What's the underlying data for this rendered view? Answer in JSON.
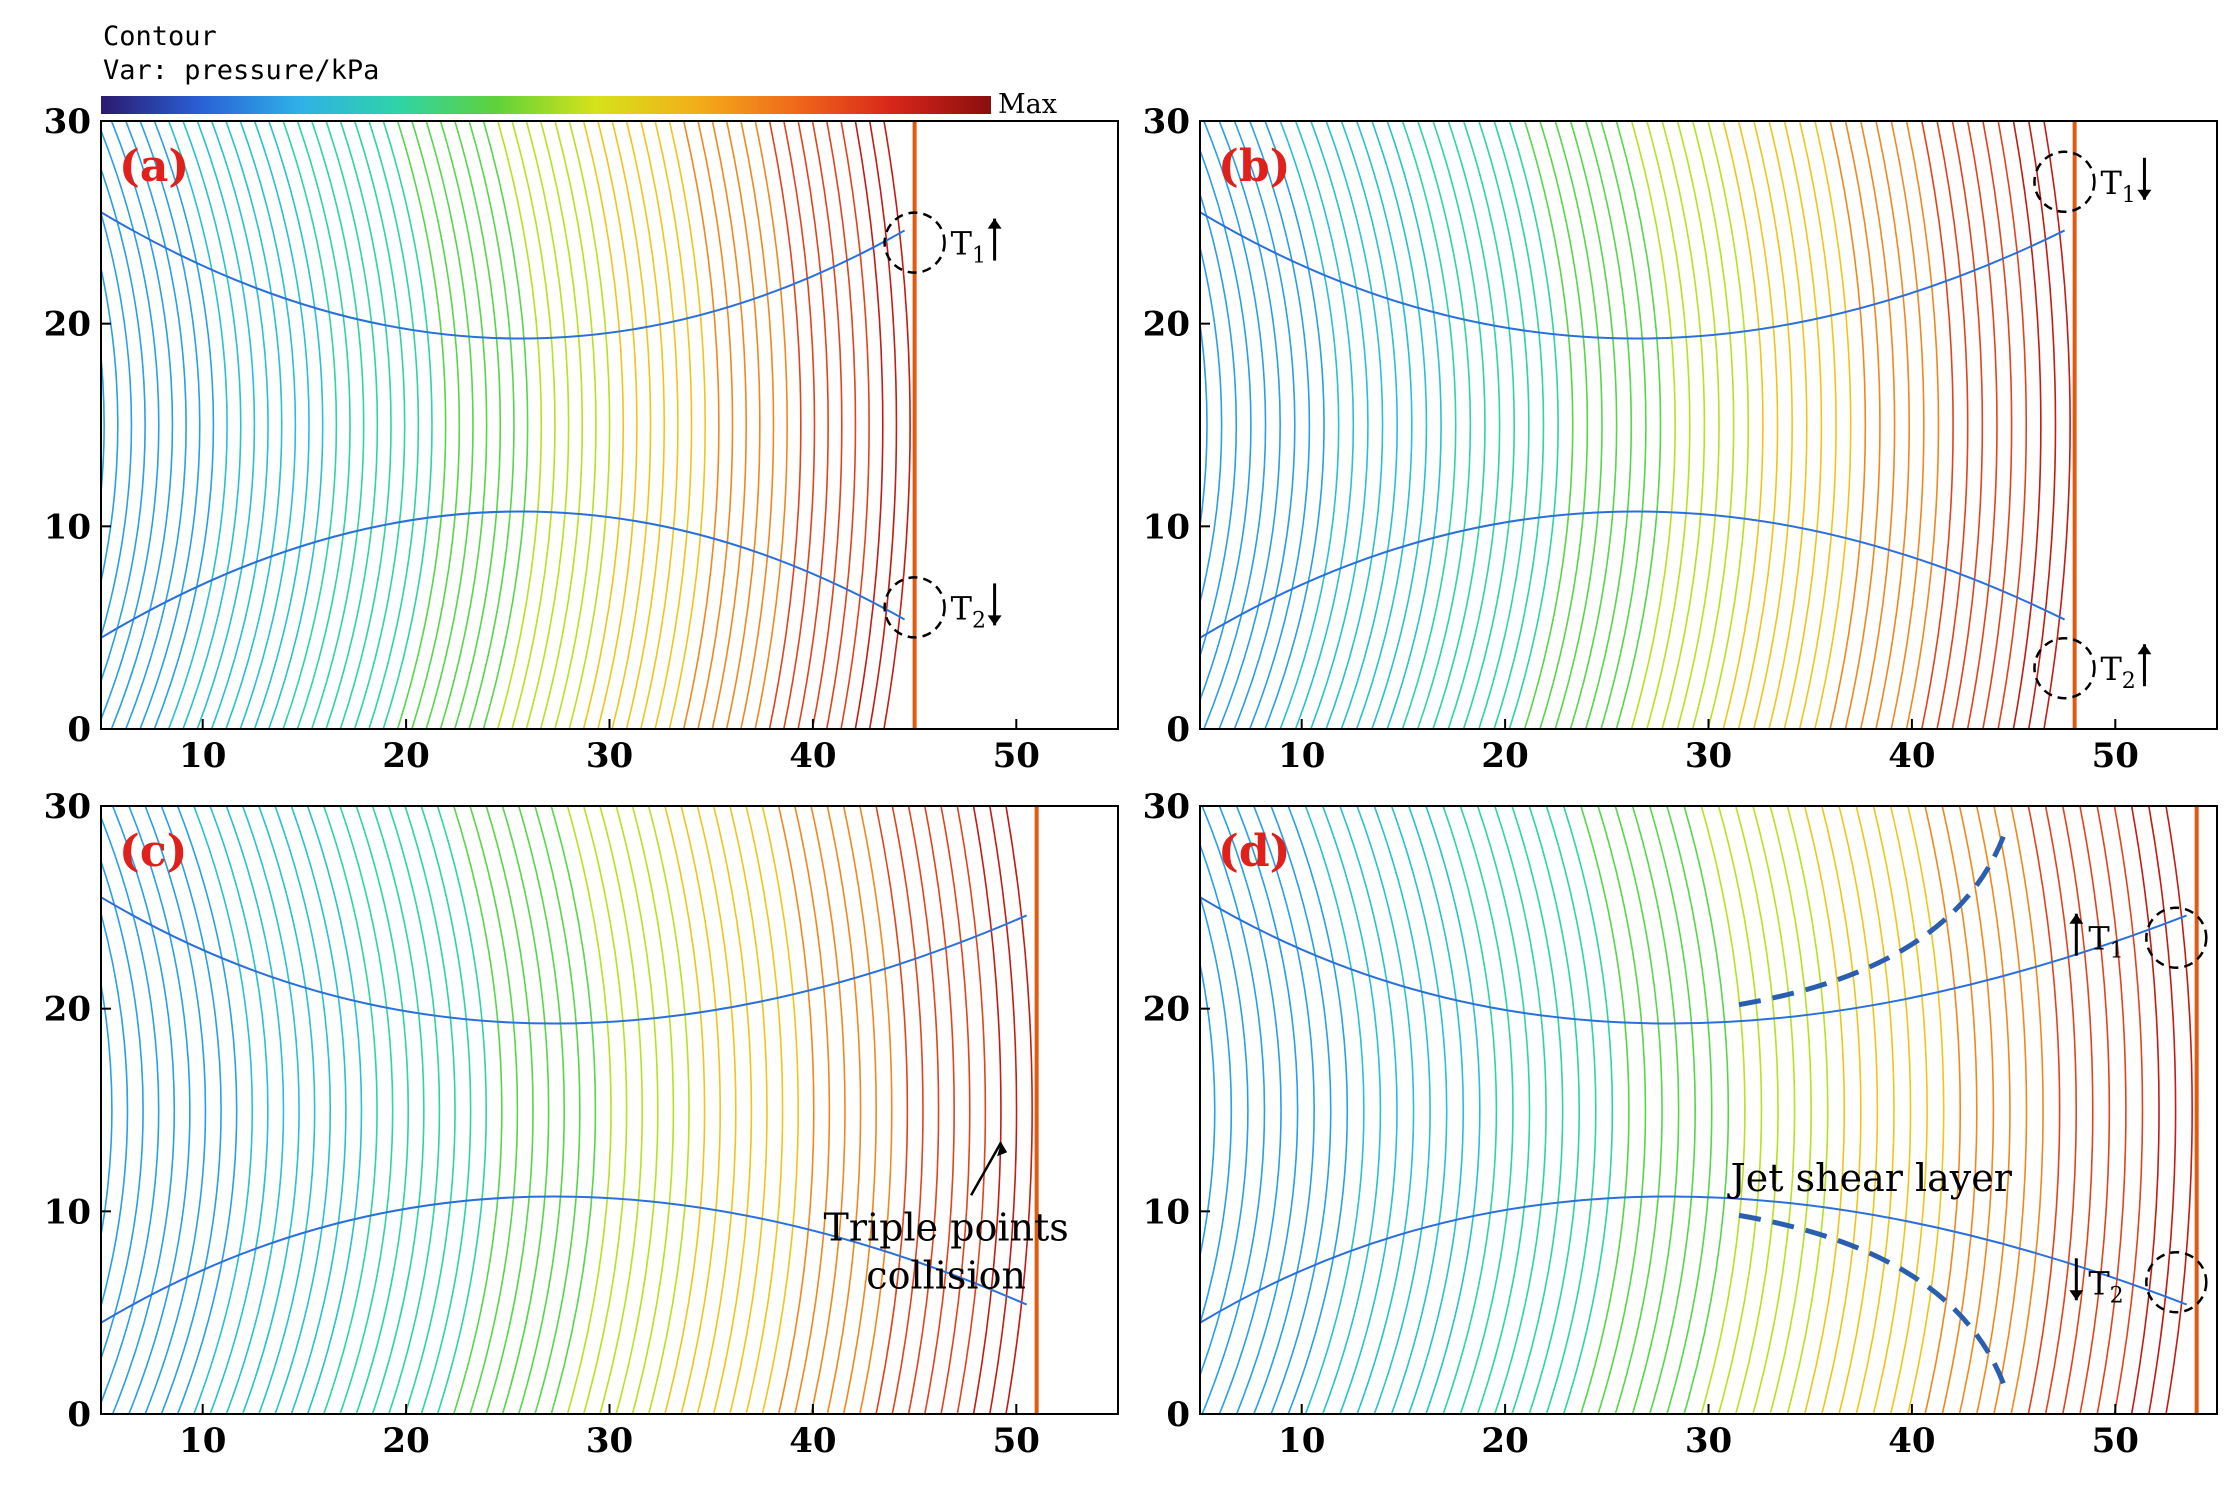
{
  "legend": {
    "title": "Contour",
    "variable": "Var: pressure/kPa",
    "max_label": "Max",
    "colorbar_stops": [
      "#2b1a6e",
      "#2a5fd6",
      "#2fb0e8",
      "#2fd3a8",
      "#5fd23a",
      "#d6e21a",
      "#f2b019",
      "#f06a1a",
      "#d8261a",
      "#8a0e0e"
    ]
  },
  "axes": {
    "x_ticks": [
      "10",
      "20",
      "30",
      "40",
      "50"
    ],
    "y_ticks": [
      "0",
      "10",
      "20",
      "30"
    ],
    "xlim": [
      5,
      55
    ],
    "ylim": [
      0,
      30
    ]
  },
  "panels": [
    {
      "label": "(a)",
      "front_x": 45,
      "markers": [
        {
          "name": "T",
          "sub": "1",
          "arrow": "up",
          "x": 45,
          "y": 24
        },
        {
          "name": "T",
          "sub": "2",
          "arrow": "down",
          "x": 45,
          "y": 6
        }
      ],
      "annotations": []
    },
    {
      "label": "(b)",
      "front_x": 48,
      "markers": [
        {
          "name": "T",
          "sub": "1",
          "arrow": "down",
          "x": 47.5,
          "y": 27
        },
        {
          "name": "T",
          "sub": "2",
          "arrow": "up",
          "x": 47.5,
          "y": 3
        }
      ],
      "annotations": []
    },
    {
      "label": "(c)",
      "front_x": 51,
      "markers": [],
      "annotations": [
        {
          "lines": [
            "Triple points",
            "collision"
          ],
          "target_x": 49.5,
          "target_y": 14
        }
      ]
    },
    {
      "label": "(d)",
      "front_x": 54,
      "markers": [
        {
          "name": "T",
          "sub": "1",
          "arrow": "up",
          "x": 53,
          "y": 23.5
        },
        {
          "name": "T",
          "sub": "2",
          "arrow": "down",
          "x": 53,
          "y": 6.5
        }
      ],
      "annotations": [
        {
          "lines": [
            "Jet shear layer"
          ],
          "target_x": 38,
          "target_y": 11
        }
      ]
    }
  ]
}
